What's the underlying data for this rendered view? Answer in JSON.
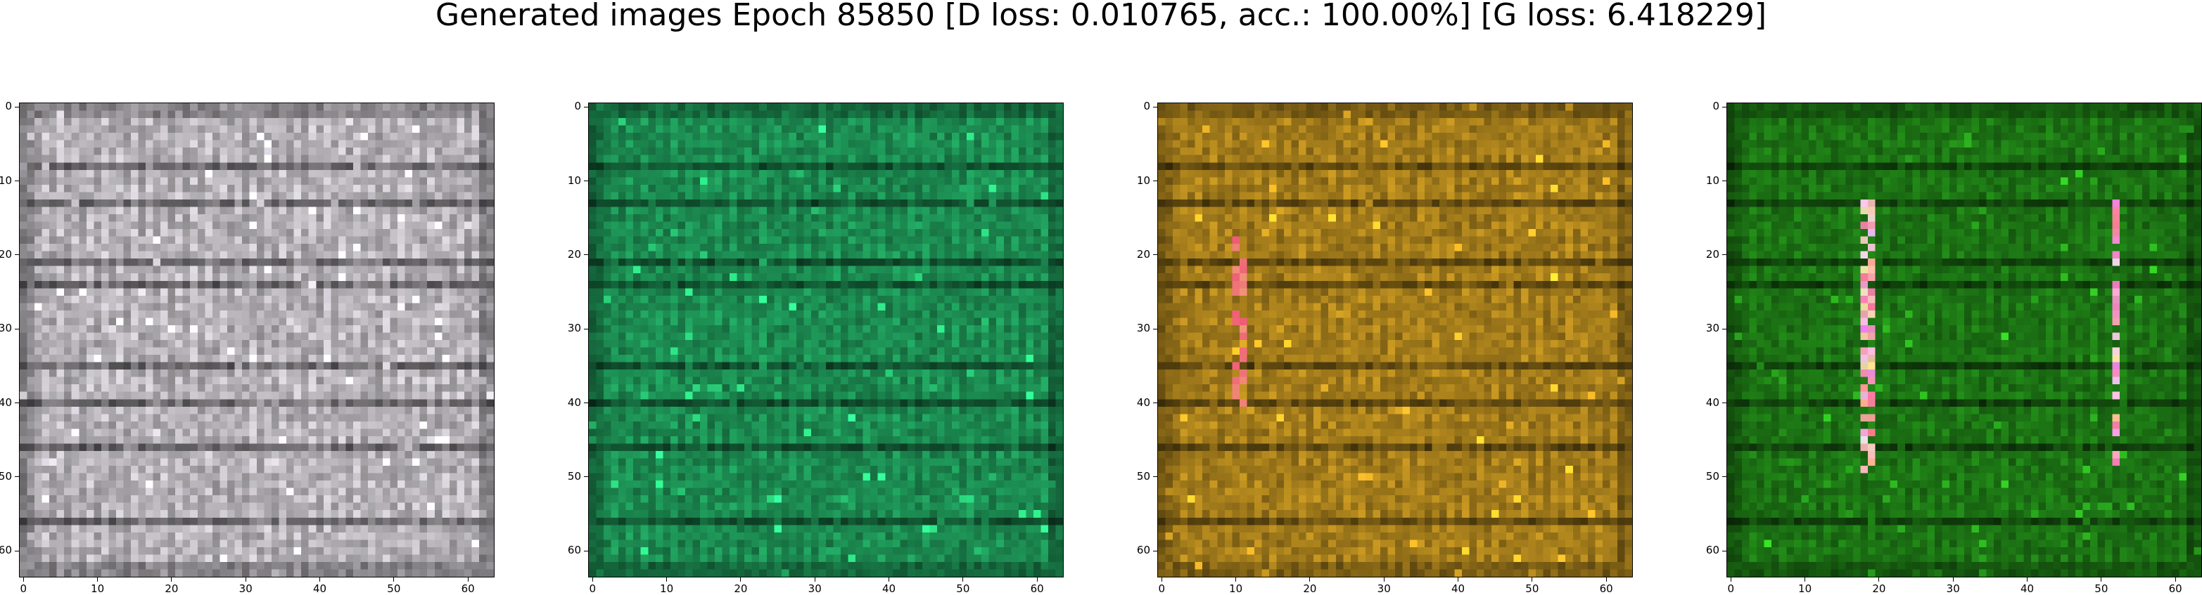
{
  "title": "Generated images Epoch 85850 [D loss: 0.010765, acc.: 100.00%] [G loss: 6.418229]",
  "chart_data": [
    {
      "type": "heatmap",
      "image": "generated sample 1 (grey/white pixelated tiling)",
      "tint": "#c9c5cb",
      "xlim": [
        -0.5,
        63.5
      ],
      "ylim": [
        63.5,
        -0.5
      ],
      "xticks": [
        0,
        10,
        20,
        30,
        40,
        50,
        60
      ],
      "yticks": [
        0,
        10,
        20,
        30,
        40,
        50,
        60
      ]
    },
    {
      "type": "heatmap",
      "image": "generated sample 2 (green/teal pixelated tiling)",
      "tint": "#1f9a5a",
      "xlim": [
        -0.5,
        63.5
      ],
      "ylim": [
        63.5,
        -0.5
      ],
      "xticks": [
        0,
        10,
        20,
        30,
        40,
        50,
        60
      ],
      "yticks": [
        0,
        10,
        20,
        30,
        40,
        50,
        60
      ]
    },
    {
      "type": "heatmap",
      "image": "generated sample 3 (amber/brown pixelated tiling)",
      "tint": "#b68a1e",
      "xlim": [
        -0.5,
        63.5
      ],
      "ylim": [
        63.5,
        -0.5
      ],
      "xticks": [
        0,
        10,
        20,
        30,
        40,
        50,
        60
      ],
      "yticks": [
        0,
        10,
        20,
        30,
        40,
        50,
        60
      ]
    },
    {
      "type": "heatmap",
      "image": "generated sample 4 (green pixelated tiling with red/white streaks)",
      "tint": "#1f7f16",
      "xlim": [
        -0.5,
        63.5
      ],
      "ylim": [
        63.5,
        -0.5
      ],
      "xticks": [
        0,
        10,
        20,
        30,
        40,
        50,
        60
      ],
      "yticks": [
        0,
        10,
        20,
        30,
        40,
        50,
        60
      ]
    }
  ]
}
